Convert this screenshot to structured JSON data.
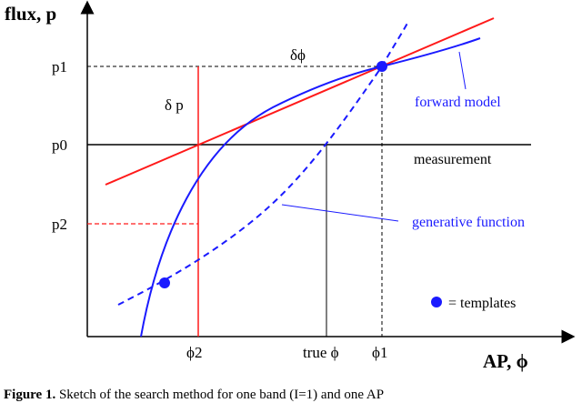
{
  "axes": {
    "y_title": "flux, p",
    "x_title": "AP, ϕ",
    "y_ticks": [
      "p1",
      "p0",
      "p2"
    ],
    "x_ticks": [
      "ϕ2",
      "true ϕ",
      "ϕ1"
    ]
  },
  "labels": {
    "delta_p": "δ p",
    "delta_phi": "δϕ",
    "forward_model": "forward model",
    "measurement": "measurement",
    "generative_function": "generative function",
    "legend_templates": "= templates"
  },
  "caption": {
    "prefix": "Figure 1.",
    "text": " Sketch of the search method for one band (I=1) and one AP"
  },
  "colors": {
    "axis": "#000000",
    "red": "#ff1a1a",
    "blue": "#1a1aff",
    "marker": "#1a1aff"
  }
}
